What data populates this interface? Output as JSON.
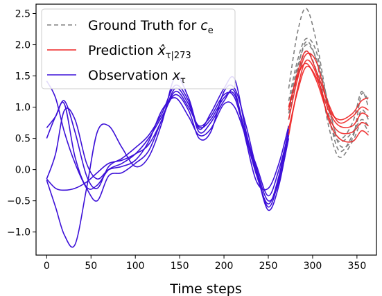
{
  "chart_data": {
    "type": "line",
    "xlabel": "Time steps",
    "ylabel": "",
    "xlim": [
      -12,
      372
    ],
    "ylim": [
      -1.37,
      2.65
    ],
    "xticks": [
      0,
      50,
      100,
      150,
      200,
      250,
      300,
      350
    ],
    "yticks": [
      -1.0,
      -0.5,
      0.0,
      0.5,
      1.0,
      1.5,
      2.0,
      2.5
    ],
    "xtick_labels": [
      "0",
      "50",
      "100",
      "150",
      "200",
      "250",
      "300",
      "350"
    ],
    "ytick_labels": [
      "−1.0",
      "−0.5",
      "0.0",
      "0.5",
      "1.0",
      "1.5",
      "2.0",
      "2.5"
    ],
    "legend_position": "top-left",
    "colors": {
      "ground_truth": "#808080",
      "prediction": "#ee2222",
      "observation": "#3c10d8"
    },
    "legend": [
      {
        "key": "ground_truth",
        "base": "Ground Truth for ",
        "var": "c",
        "sub": "e"
      },
      {
        "key": "prediction",
        "base": "Prediction ",
        "var": "x̂",
        "sub": "τ|273"
      },
      {
        "key": "observation",
        "base": "Observation ",
        "var": "x",
        "sub": "τ"
      }
    ],
    "series": [
      {
        "group": "observation",
        "x": [
          0,
          10,
          20,
          32,
          45,
          57,
          70,
          85,
          100,
          115,
          130,
          145,
          160,
          172,
          185,
          200,
          212,
          225,
          237,
          250,
          262,
          273
        ],
        "y": [
          1.42,
          1.15,
          0.6,
          0.1,
          -0.3,
          -0.5,
          -0.1,
          -0.05,
          0.1,
          0.3,
          0.8,
          1.25,
          1.0,
          0.7,
          0.85,
          1.2,
          1.15,
          0.5,
          -0.1,
          -0.55,
          -0.1,
          0.65
        ]
      },
      {
        "group": "observation",
        "x": [
          0,
          10,
          20,
          32,
          45,
          57,
          70,
          85,
          100,
          115,
          130,
          145,
          160,
          172,
          185,
          200,
          212,
          225,
          237,
          250,
          262,
          273
        ],
        "y": [
          0.67,
          0.85,
          1.1,
          0.6,
          -0.1,
          -0.3,
          0.05,
          0.18,
          0.35,
          0.55,
          0.9,
          1.35,
          1.1,
          0.6,
          0.75,
          1.1,
          1.25,
          0.45,
          -0.2,
          -0.3,
          0.1,
          0.7
        ]
      },
      {
        "group": "observation",
        "x": [
          0,
          10,
          20,
          32,
          45,
          57,
          70,
          85,
          100,
          115,
          130,
          145,
          160,
          172,
          185,
          200,
          212,
          225,
          237,
          250,
          262,
          273
        ],
        "y": [
          -0.15,
          0.25,
          0.95,
          0.8,
          0.1,
          -0.15,
          0.0,
          0.05,
          0.15,
          0.45,
          0.95,
          1.15,
          0.85,
          0.55,
          0.65,
          1.05,
          1.0,
          0.5,
          -0.05,
          -0.6,
          -0.15,
          0.6
        ]
      },
      {
        "group": "observation",
        "x": [
          0,
          10,
          20,
          32,
          45,
          57,
          70,
          85,
          100,
          115,
          130,
          145,
          160,
          172,
          185,
          200,
          212,
          225,
          237,
          250,
          262,
          273
        ],
        "y": [
          -0.17,
          -0.6,
          -1.05,
          -1.2,
          -0.3,
          0.6,
          0.7,
          0.35,
          0.05,
          0.2,
          0.75,
          1.48,
          1.15,
          0.65,
          0.9,
          1.3,
          1.45,
          0.6,
          -0.05,
          -0.65,
          -0.25,
          0.55
        ]
      },
      {
        "group": "observation",
        "x": [
          0,
          10,
          20,
          32,
          45,
          57,
          70,
          85,
          100,
          115,
          130,
          145,
          160,
          172,
          185,
          200,
          212,
          225,
          237,
          250,
          262,
          273
        ],
        "y": [
          0.5,
          0.85,
          1.05,
          0.2,
          -0.28,
          -0.25,
          0.0,
          0.1,
          0.25,
          0.5,
          0.85,
          1.2,
          0.95,
          0.5,
          0.6,
          1.25,
          1.3,
          0.7,
          0.0,
          -0.5,
          -0.2,
          0.5
        ]
      },
      {
        "group": "observation",
        "x": [
          0,
          10,
          20,
          32,
          45,
          57,
          70,
          85,
          100,
          115,
          130,
          145,
          160,
          172,
          185,
          200,
          212,
          225,
          237,
          250,
          262,
          273
        ],
        "y": [
          -0.15,
          -0.3,
          -0.33,
          -0.3,
          -0.2,
          -0.05,
          0.1,
          0.15,
          0.25,
          0.4,
          0.8,
          1.3,
          1.05,
          0.68,
          0.8,
          1.15,
          1.2,
          0.55,
          0.05,
          -0.42,
          0.0,
          0.6
        ]
      },
      {
        "group": "prediction",
        "x": [
          273,
          283,
          293,
          305,
          318,
          330,
          345,
          355,
          363
        ],
        "y": [
          0.55,
          1.3,
          1.75,
          1.5,
          0.8,
          0.5,
          0.45,
          0.62,
          0.55
        ]
      },
      {
        "group": "prediction",
        "x": [
          273,
          283,
          293,
          305,
          318,
          330,
          345,
          355,
          363
        ],
        "y": [
          0.8,
          1.45,
          1.85,
          1.7,
          1.0,
          0.8,
          0.9,
          1.1,
          1.15
        ]
      },
      {
        "group": "prediction",
        "x": [
          273,
          283,
          293,
          305,
          318,
          330,
          345,
          355,
          363
        ],
        "y": [
          1.0,
          1.5,
          1.7,
          1.4,
          0.85,
          0.6,
          0.6,
          0.75,
          0.7
        ]
      },
      {
        "group": "prediction",
        "x": [
          273,
          283,
          293,
          305,
          318,
          330,
          345,
          355,
          363
        ],
        "y": [
          0.95,
          1.55,
          1.9,
          1.55,
          1.05,
          0.75,
          0.85,
          1.0,
          0.95
        ]
      },
      {
        "group": "prediction",
        "x": [
          273,
          283,
          293,
          305,
          318,
          330,
          345,
          355,
          363
        ],
        "y": [
          0.65,
          1.25,
          1.65,
          1.45,
          0.95,
          0.7,
          0.7,
          0.9,
          0.85
        ]
      },
      {
        "group": "ground_truth",
        "x": [
          273,
          283,
          293,
          305,
          318,
          330,
          345,
          355,
          363
        ],
        "y": [
          1.3,
          2.2,
          2.58,
          2.0,
          1.0,
          0.5,
          0.75,
          1.25,
          1.0
        ]
      },
      {
        "group": "ground_truth",
        "x": [
          273,
          283,
          293,
          305,
          318,
          330,
          345,
          355,
          363
        ],
        "y": [
          0.8,
          1.6,
          2.05,
          1.7,
          0.7,
          0.2,
          0.45,
          0.75,
          0.6
        ]
      },
      {
        "group": "ground_truth",
        "x": [
          273,
          283,
          293,
          305,
          318,
          330,
          345,
          355,
          363
        ],
        "y": [
          1.1,
          1.75,
          2.1,
          1.85,
          0.9,
          0.3,
          0.55,
          0.95,
          0.8
        ]
      },
      {
        "group": "ground_truth",
        "x": [
          273,
          283,
          293,
          305,
          318,
          330,
          345,
          355,
          363
        ],
        "y": [
          0.9,
          1.5,
          1.9,
          1.55,
          0.8,
          0.45,
          0.6,
          0.8,
          0.7
        ]
      },
      {
        "group": "ground_truth",
        "x": [
          273,
          283,
          293,
          305,
          318,
          330,
          345,
          355,
          363
        ],
        "y": [
          1.0,
          1.65,
          2.0,
          1.75,
          1.05,
          0.4,
          0.5,
          1.2,
          1.1
        ]
      }
    ]
  }
}
